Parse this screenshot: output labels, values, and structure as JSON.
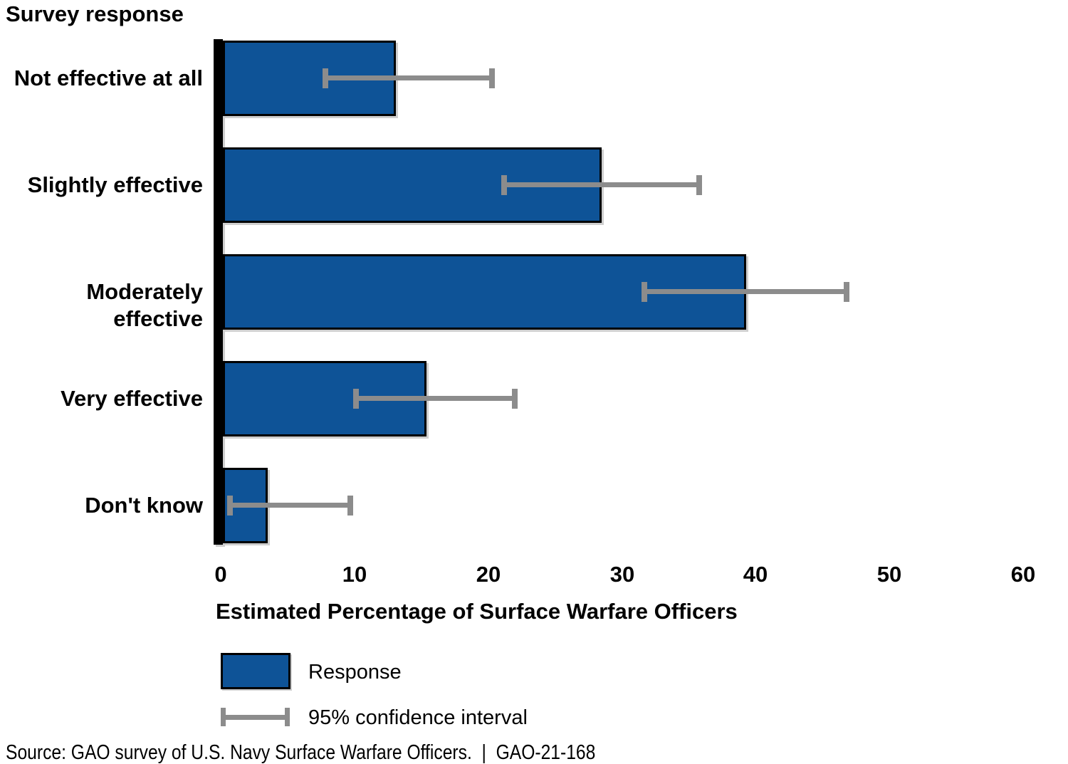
{
  "title": "Survey response",
  "x_axis": {
    "label": "Estimated Percentage of Surface Warfare Officers",
    "tick_labels": [
      "0",
      "10",
      "20",
      "30",
      "40",
      "50",
      "60"
    ]
  },
  "legend": {
    "response_label": "Response",
    "ci_label": "95% confidence interval"
  },
  "source": "Source: GAO survey of U.S. Navy Surface Warfare Officers.  |  GAO-21-168",
  "colors": {
    "bar_fill": "#0E5397",
    "bar_border": "#000000",
    "error_bar": "#8C8C8C",
    "axis": "#000000",
    "text": "#000000"
  },
  "chart_data": {
    "type": "bar",
    "orientation": "horizontal",
    "title": "Survey response",
    "xlabel": "Estimated Percentage of Surface Warfare Officers",
    "ylabel": "Survey response",
    "xlim": [
      0,
      60
    ],
    "xticks": [
      0,
      10,
      20,
      30,
      40,
      50,
      60
    ],
    "grid": false,
    "legend_position": "bottom-left",
    "categories": [
      "Not effective at all",
      "Slightly effective",
      "Moderately effective",
      "Very effective",
      "Don't know"
    ],
    "series": [
      {
        "name": "Response",
        "values": [
          13.1,
          28.5,
          39.3,
          15.4,
          3.5
        ],
        "ci_low": [
          7.8,
          21.2,
          31.7,
          10.1,
          0.7
        ],
        "ci_high": [
          20.3,
          35.8,
          46.8,
          22.0,
          9.7
        ],
        "ci_name": "95% confidence interval"
      }
    ]
  }
}
